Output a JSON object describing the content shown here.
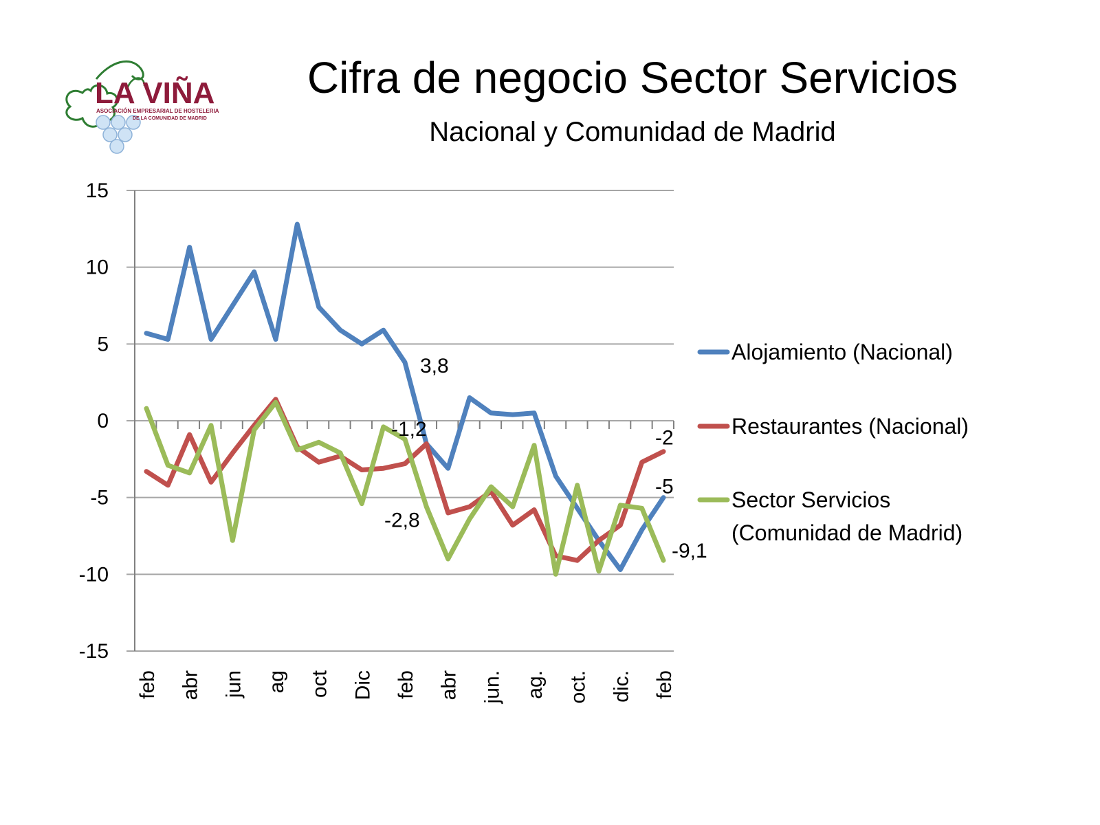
{
  "header": {
    "title": "Cifra de negocio Sector Servicios",
    "subtitle": "Nacional y Comunidad de Madrid"
  },
  "logo": {
    "text": "LA VIÑA",
    "tagline_1": "ASOCIACIÓN EMPRESARIAL DE HOSTELERIA",
    "tagline_2": "DE LA COMUNIDAD DE MADRID"
  },
  "colors": {
    "alojamiento": "#4f81bd",
    "restaurantes": "#c0504d",
    "servicios": "#9bbb59",
    "grid": "#a6a6a6",
    "axis": "#808080"
  },
  "chart_data": {
    "type": "line",
    "ylim": [
      -15,
      15
    ],
    "yticks": [
      15,
      10,
      5,
      0,
      -5,
      -10,
      -15
    ],
    "category_labels": [
      "feb",
      "abr",
      "jun",
      "ag",
      "oct",
      "Dic",
      "feb",
      "abr",
      "jun.",
      "ag.",
      "oct.",
      "dic.",
      "feb"
    ],
    "category_label_every": 2,
    "n_points": 25,
    "grid": true,
    "legend_position": "right",
    "series": [
      {
        "name": "Alojamiento (Nacional)",
        "values": [
          5.7,
          5.3,
          11.3,
          5.3,
          7.5,
          9.7,
          5.3,
          12.8,
          7.4,
          5.9,
          5.0,
          5.9,
          3.8,
          -1.5,
          -3.1,
          1.5,
          0.5,
          0.4,
          0.5,
          -3.6,
          -5.7,
          -7.8,
          -9.7,
          -7.1,
          -5.0
        ],
        "labels": [
          {
            "index": 12,
            "text": "3,8"
          },
          {
            "index": 24,
            "text": "-5"
          }
        ]
      },
      {
        "name": "Restaurantes (Nacional)",
        "values": [
          -3.3,
          -4.2,
          -0.9,
          -4.0,
          -2.1,
          -0.3,
          1.4,
          -1.7,
          -2.7,
          -2.3,
          -3.2,
          -3.1,
          -2.8,
          -1.5,
          -6.0,
          -5.6,
          -4.6,
          -6.8,
          -5.8,
          -8.8,
          -9.1,
          -7.8,
          -6.8,
          -2.7,
          -2.0
        ],
        "labels": [
          {
            "index": 12,
            "text": "-2,8"
          },
          {
            "index": 24,
            "text": "-2"
          }
        ]
      },
      {
        "name": "Sector Servicios (Comunidad de Madrid)",
        "name_lines": [
          "Sector Servicios",
          "(Comunidad de Madrid)"
        ],
        "values": [
          0.8,
          -2.9,
          -3.4,
          -0.3,
          -7.8,
          -0.6,
          1.2,
          -1.9,
          -1.4,
          -2.1,
          -5.4,
          -0.4,
          -1.2,
          -5.6,
          -9.0,
          -6.4,
          -4.3,
          -5.6,
          -1.6,
          -10.0,
          -4.2,
          -9.8,
          -5.5,
          -5.7,
          -9.1
        ],
        "labels": [
          {
            "index": 12,
            "text": "-1,2"
          },
          {
            "index": 24,
            "text": "-9,1"
          }
        ]
      }
    ]
  }
}
